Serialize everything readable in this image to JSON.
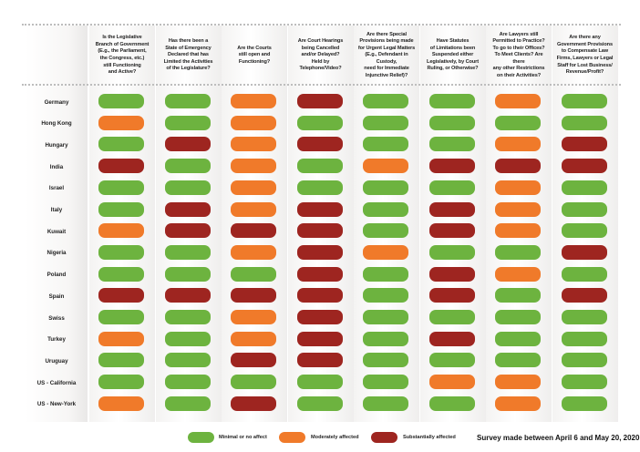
{
  "chart_data": {
    "type": "table",
    "title": "",
    "columns": [
      "Is the Legislative Branch of Government (E.g., the Parliament, the Congress, etc.) still Functioning and Active?",
      "Has there been a State of Emergency Declared that has Limited the Activities of the Legislature?",
      "Are the Courts still open and Functioning?",
      "Are Court Hearings being Cancelled and/or Delayed? Held by Telephone/Video?",
      "Are there Special Provisions being made for Urgent Legal Matters (E.g., Defendant in Custody, need for Immediate Injunctive Relief)?",
      "Have Statutes of Limitations been Suspended either Legislatively, by Court Ruling, or Otherwise?",
      "Are Lawyers still Permitted to Practice? To go to their Offices? To Meet Clients? Are there any other Restrictions on their Activities?",
      "Are there any Government Provisions to Compensate Law Firms, Lawyers or Legal Staff for Lost Business/ Revenue/Profit?"
    ],
    "column_lines": [
      [
        "Is the Legislative",
        "Branch of Government",
        "(E.g., the Parliament,",
        "the Congress, etc.)",
        "still Functioning",
        "and Active?"
      ],
      [
        "Has there been a",
        "State of Emergency",
        "Declared that has",
        "Limited the Activities",
        "of the Legislature?"
      ],
      [
        "Are the Courts",
        "still open and",
        "Functioning?"
      ],
      [
        "Are Court Hearings",
        "being Cancelled",
        "and/or Delayed?",
        "Held by Telephone/Video?"
      ],
      [
        "Are there Special",
        "Provisions being made",
        "for Urgent Legal Matters",
        "(E.g., Defendant in Custody,",
        "need for Immediate",
        "Injunctive Relief)?"
      ],
      [
        "Have Statutes",
        "of Limitations been",
        "Suspended either",
        "Legislatively, by Court",
        "Ruling, or Otherwise?"
      ],
      [
        "Are Lawyers still",
        "Permitted to Practice?",
        "To go to their Offices?",
        "To Meet Clients? Are there",
        "any other Restrictions",
        "on their Activities?"
      ],
      [
        "Are there any",
        "Government Provisions",
        "to Compensate Law",
        "Firms, Lawyers or Legal",
        "Staff for Lost Business/",
        "Revenue/Profit?"
      ]
    ],
    "levels": {
      "minimal": {
        "label": "Minimal or no affect",
        "color": "#6db33f"
      },
      "moderate": {
        "label": "Moderately affected",
        "color": "#f07a2a"
      },
      "substantial": {
        "label": "Substantially affected",
        "color": "#9e2520"
      }
    },
    "legend_order": [
      "minimal",
      "moderate",
      "substantial"
    ],
    "legend_position": "bottom",
    "rows": [
      {
        "country": "Germany",
        "values": [
          "minimal",
          "minimal",
          "moderate",
          "substantial",
          "minimal",
          "minimal",
          "moderate",
          "minimal"
        ]
      },
      {
        "country": "Hong Kong",
        "values": [
          "moderate",
          "minimal",
          "moderate",
          "minimal",
          "minimal",
          "minimal",
          "minimal",
          "minimal"
        ]
      },
      {
        "country": "Hungary",
        "values": [
          "minimal",
          "substantial",
          "moderate",
          "substantial",
          "minimal",
          "minimal",
          "moderate",
          "substantial"
        ]
      },
      {
        "country": "India",
        "values": [
          "substantial",
          "minimal",
          "moderate",
          "minimal",
          "moderate",
          "substantial",
          "substantial",
          "substantial"
        ]
      },
      {
        "country": "Israel",
        "values": [
          "minimal",
          "minimal",
          "moderate",
          "minimal",
          "minimal",
          "minimal",
          "moderate",
          "minimal"
        ]
      },
      {
        "country": "Italy",
        "values": [
          "minimal",
          "substantial",
          "moderate",
          "substantial",
          "minimal",
          "substantial",
          "moderate",
          "minimal"
        ]
      },
      {
        "country": "Kuwait",
        "values": [
          "moderate",
          "substantial",
          "substantial",
          "substantial",
          "minimal",
          "substantial",
          "moderate",
          "minimal"
        ]
      },
      {
        "country": "Nigeria",
        "values": [
          "minimal",
          "minimal",
          "moderate",
          "substantial",
          "moderate",
          "minimal",
          "minimal",
          "substantial"
        ]
      },
      {
        "country": "Poland",
        "values": [
          "minimal",
          "minimal",
          "minimal",
          "substantial",
          "minimal",
          "substantial",
          "moderate",
          "minimal"
        ]
      },
      {
        "country": "Spain",
        "values": [
          "substantial",
          "substantial",
          "substantial",
          "substantial",
          "minimal",
          "substantial",
          "minimal",
          "substantial"
        ]
      },
      {
        "country": "Swiss",
        "values": [
          "minimal",
          "minimal",
          "moderate",
          "substantial",
          "minimal",
          "minimal",
          "minimal",
          "minimal"
        ]
      },
      {
        "country": "Turkey",
        "values": [
          "moderate",
          "minimal",
          "moderate",
          "substantial",
          "minimal",
          "substantial",
          "minimal",
          "minimal"
        ]
      },
      {
        "country": "Uruguay",
        "values": [
          "minimal",
          "minimal",
          "substantial",
          "substantial",
          "minimal",
          "minimal",
          "minimal",
          "minimal"
        ]
      },
      {
        "country": "US - California",
        "values": [
          "minimal",
          "minimal",
          "minimal",
          "minimal",
          "minimal",
          "moderate",
          "moderate",
          "minimal"
        ]
      },
      {
        "country": "US - New-York",
        "values": [
          "moderate",
          "minimal",
          "substantial",
          "minimal",
          "minimal",
          "minimal",
          "moderate",
          "minimal"
        ]
      }
    ],
    "footnote": "Survey made between April 6 and May 20, 2020."
  }
}
